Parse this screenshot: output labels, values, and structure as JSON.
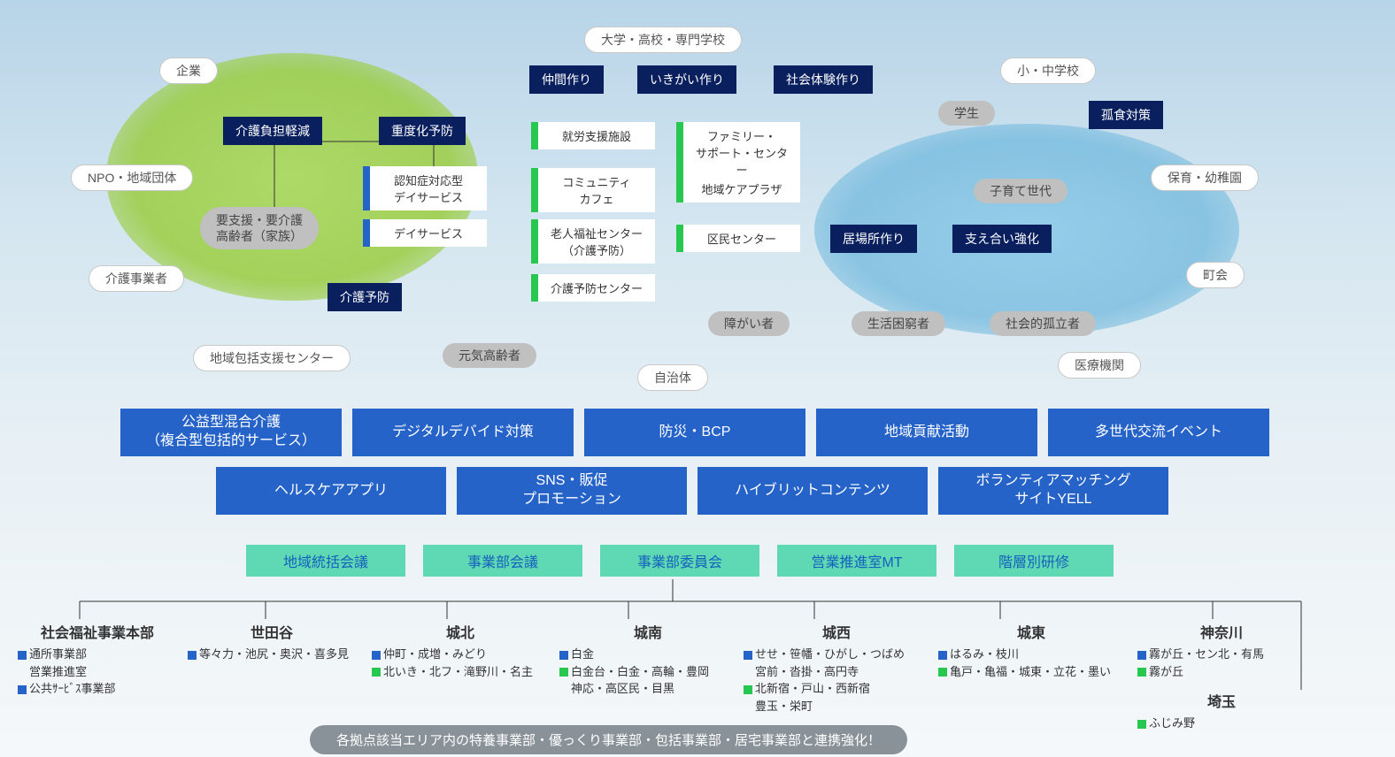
{
  "colors": {
    "dark_navy": "#0a1f5e",
    "bar_blue": "#2563c9",
    "bar_teal": "#5fd9b3",
    "accent_green": "#28c850",
    "pill_gray": "#c0c0c0",
    "ellipse_green": "#9acd40",
    "ellipse_blue": "#6fb8dd",
    "footer_gray": "#8a9299"
  },
  "pills_white": {
    "univ": "大学・高校・専門学校",
    "company": "企業",
    "elem": "小・中学校",
    "npo": "NPO・地域団体",
    "nursery": "保育・幼稚園",
    "care_biz": "介護事業者",
    "town": "町会",
    "support_ctr": "地域包括支援センター",
    "muni": "自治体",
    "med": "医療機関"
  },
  "pills_gray": {
    "student": "学生",
    "parenting": "子育て世代",
    "elderly_active": "元気高齢者",
    "target_elderly_l1": "要支援・要介護",
    "target_elderly_l2": "高齢者（家族）",
    "disabled": "障がい者",
    "poverty": "生活困窮者",
    "isolated": "社会的孤立者"
  },
  "dark_boxes": {
    "burden": "介護負担軽減",
    "severity": "重度化予防",
    "peer": "仲間作り",
    "ikigai": "いきがい作り",
    "social_exp": "社会体験作り",
    "koshoku": "孤食対策",
    "prevention": "介護予防",
    "ibasho": "居場所作り",
    "sasae": "支え合い強化"
  },
  "facility_boxes": {
    "dementia": "認知症対応型\nデイサービス",
    "dayservice": "デイサービス",
    "work_support": "就労支援施設",
    "comm_cafe": "コミュニティ\nカフェ",
    "senior_ctr": "老人福祉センター\n（介護予防）",
    "prev_ctr": "介護予防センター",
    "family_sup": "ファミリー・\nサポート・センター",
    "care_plaza": "地域ケアプラザ",
    "kumin_ctr": "区民センター"
  },
  "blue_bars_row1": {
    "a": "公益型混合介護\n（複合型包括的サービス）",
    "b": "デジタルデバイド対策",
    "c": "防災・BCP",
    "d": "地域貢献活動",
    "e": "多世代交流イベント"
  },
  "blue_bars_row2": {
    "a": "ヘルスケアアプリ",
    "b": "SNS・販促\nプロモーション",
    "c": "ハイブリットコンテンツ",
    "d": "ボランティアマッチング\nサイトYELL"
  },
  "teal_bars": {
    "a": "地域統括会議",
    "b": "事業部会議",
    "c": "事業部委員会",
    "d": "営業推進室MT",
    "e": "階層別研修"
  },
  "org": {
    "hq": {
      "title": "社会福祉事業本部",
      "lines": [
        {
          "marker": "blue",
          "text": "通所事業部"
        },
        {
          "marker": "none",
          "text": "営業推進室"
        },
        {
          "marker": "blue",
          "text": "公共ｻｰﾋﾞｽ事業部"
        }
      ]
    },
    "setagaya": {
      "title": "世田谷",
      "lines": [
        {
          "marker": "blue",
          "text": "等々力・池尻・奥沢・喜多見"
        }
      ]
    },
    "johoku": {
      "title": "城北",
      "lines": [
        {
          "marker": "blue",
          "text": "仲町・成増・みどり"
        },
        {
          "marker": "green",
          "text": "北いき・北フ・滝野川・名主"
        }
      ]
    },
    "jonan": {
      "title": "城南",
      "lines": [
        {
          "marker": "blue",
          "text": "白金"
        },
        {
          "marker": "green",
          "text": "白金台・白金・高輪・豊岡"
        },
        {
          "marker": "none",
          "text": "神応・高区民・目黒"
        }
      ]
    },
    "josai": {
      "title": "城西",
      "lines": [
        {
          "marker": "blue",
          "text": "せせ・笹幡・ひがし・つばめ"
        },
        {
          "marker": "none",
          "text": "宮前・沓掛・高円寺"
        },
        {
          "marker": "green",
          "text": "北新宿・戸山・西新宿"
        },
        {
          "marker": "none",
          "text": "豊玉・栄町"
        }
      ]
    },
    "joto": {
      "title": "城東",
      "lines": [
        {
          "marker": "blue",
          "text": "はるみ・枝川"
        },
        {
          "marker": "green",
          "text": "亀戸・亀福・城東・立花・墨い"
        }
      ]
    },
    "kanagawa": {
      "title": "神奈川",
      "lines": [
        {
          "marker": "blue",
          "text": "霧が丘・セン北・有馬"
        },
        {
          "marker": "green",
          "text": "霧が丘"
        }
      ]
    },
    "saitama": {
      "title": "埼玉",
      "lines": [
        {
          "marker": "green",
          "text": "ふじみ野"
        }
      ]
    }
  },
  "footer": "各拠点該当エリア内の特養事業部・優っくり事業部・包括事業部・居宅事業部と連携強化！"
}
